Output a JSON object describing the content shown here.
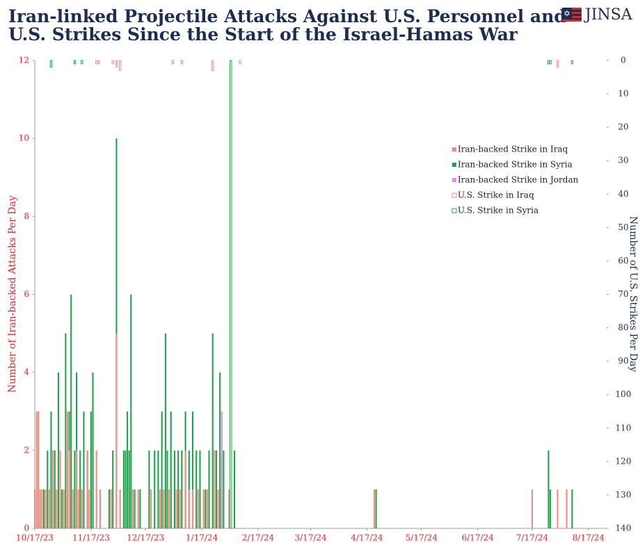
{
  "chart_data": {
    "type": "bar",
    "title": [
      "Iran-linked Projectile Attacks Against U.S. Personnel and",
      "U.S. Strikes Since the Start of the Israel-Hamas War"
    ],
    "brand": "JINSA",
    "ylabel": "Number of Iran-backed Attacks Per Day",
    "y2label": "Number of U.S. Strikes Per Day",
    "xlim": [
      "10/17/23",
      "8/27/24"
    ],
    "xticks": [
      "10/17/23",
      "11/17/23",
      "12/17/23",
      "1/17/24",
      "2/17/24",
      "3/17/24",
      "4/17/24",
      "5/17/24",
      "6/17/24",
      "7/17/24",
      "8/17/24"
    ],
    "ylim": [
      0,
      12
    ],
    "yticks": [
      0,
      2,
      4,
      6,
      8,
      10,
      12
    ],
    "y2lim": [
      0,
      140
    ],
    "y2ticks": [
      0,
      10,
      20,
      30,
      40,
      50,
      60,
      70,
      80,
      90,
      100,
      110,
      120,
      130,
      140
    ],
    "y2_inverted": true,
    "legend": "upper right",
    "series": [
      {
        "name": "Iran-backed Strike in Syria",
        "color": "#1fa34a",
        "x": [
          "10/19/23",
          "10/22/23",
          "10/24/23",
          "10/26/23",
          "10/28/23",
          "10/30/23",
          "11/1/23",
          "11/3/23",
          "11/5/23",
          "11/6/23",
          "11/8/23",
          "11/9/23",
          "11/11/23",
          "11/13/23",
          "11/15/23",
          "11/17/23",
          "11/18/23",
          "11/27/23",
          "11/29/23",
          "12/1/23",
          "12/5/23",
          "12/6/23",
          "12/7/23",
          "12/8/23",
          "12/9/23",
          "12/11/23",
          "12/14/23",
          "12/19/23",
          "12/22/23",
          "12/24/23",
          "12/26/23",
          "12/28/23",
          "12/29/23",
          "12/31/23",
          "1/2/24",
          "1/4/24",
          "1/6/24",
          "1/8/24",
          "1/10/24",
          "1/12/24",
          "1/14/24",
          "1/16/24",
          "1/19/24",
          "1/21/24",
          "1/23/24",
          "1/25/24",
          "1/27/24",
          "1/29/24",
          "2/4/24",
          "4/22/24",
          "7/26/24",
          "7/27/24",
          "8/8/24"
        ],
        "values": [
          3,
          1,
          2,
          3,
          2,
          4,
          1,
          5,
          3,
          6,
          2,
          4,
          2,
          3,
          2,
          3,
          4,
          1,
          2,
          10,
          2,
          2,
          3,
          2,
          6,
          1,
          1,
          2,
          2,
          2,
          3,
          5,
          2,
          3,
          2,
          2,
          2,
          3,
          2,
          3,
          2,
          2,
          1,
          2,
          5,
          2,
          4,
          2,
          2,
          1,
          2,
          1,
          1
        ]
      },
      {
        "name": "Iran-backed Strike in Iraq",
        "color": "#f28b82",
        "x": [
          "10/17/23",
          "10/18/23",
          "10/19/23",
          "10/20/23",
          "10/21/23",
          "10/23/23",
          "10/25/23",
          "10/27/23",
          "10/29/23",
          "10/31/23",
          "11/2/23",
          "11/4/23",
          "11/5/23",
          "11/7/23",
          "11/9/23",
          "11/10/23",
          "11/12/23",
          "11/15/23",
          "11/16/23",
          "11/20/23",
          "11/22/23",
          "11/28/23",
          "12/1/23",
          "12/3/23",
          "12/10/23",
          "12/13/23",
          "12/20/23",
          "12/25/23",
          "12/27/23",
          "12/30/23",
          "1/3/24",
          "1/5/24",
          "1/8/24",
          "1/10/24",
          "1/12/24",
          "1/15/24",
          "1/18/24",
          "1/20/24",
          "1/24/24",
          "1/26/24",
          "1/28/24",
          "2/1/24",
          "4/21/24",
          "7/17/24",
          "7/31/24",
          "8/5/24"
        ],
        "values": [
          1,
          3,
          3,
          1,
          1,
          1,
          1,
          2,
          1,
          2,
          1,
          3,
          2,
          1,
          2,
          1,
          1,
          2,
          1,
          2,
          1,
          1,
          5,
          1,
          1,
          1,
          1,
          1,
          1,
          1,
          1,
          1,
          2,
          1,
          1,
          1,
          1,
          1,
          2,
          1,
          1,
          1,
          1,
          1,
          1,
          1
        ]
      },
      {
        "name": "Iran-backed Strike in Jordan",
        "color": "#e58ae8",
        "x": [
          "1/28/24"
        ],
        "values": [
          3
        ]
      },
      {
        "name": "U.S. Strike in Iraq",
        "color": "#f28b82",
        "axis": "y2",
        "outline": true,
        "x": [
          "11/20/23",
          "11/21/23",
          "11/29/23",
          "12/1/23",
          "12/3/23",
          "1/1/24",
          "1/6/24",
          "1/23/24",
          "2/2/24",
          "2/7/24",
          "7/31/24"
        ],
        "values": [
          1,
          1,
          1,
          2,
          3,
          1,
          1,
          3,
          125,
          1,
          2
        ]
      },
      {
        "name": "U.S. Strike in Syria",
        "color": "#1fa34a",
        "axis": "y2",
        "outline": true,
        "x": [
          "10/26/23",
          "11/8/23",
          "11/12/23",
          "2/2/24",
          "7/26/24",
          "7/27/24",
          "8/8/24"
        ],
        "values": [
          2,
          1,
          1,
          140,
          1,
          1,
          1
        ]
      }
    ]
  }
}
